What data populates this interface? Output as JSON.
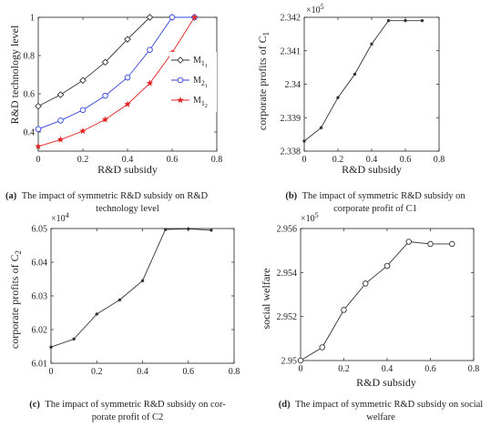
{
  "chart_data": [
    {
      "id": "a",
      "type": "line",
      "caption_letter": "(a)",
      "caption_lines": [
        "The impact of symmetric R&D subsidy on R&D",
        "technology level"
      ],
      "xlabel": "R&D subsidy",
      "ylabel": "R&D technology level",
      "xlim": [
        0,
        0.8
      ],
      "ylim": [
        0.3,
        1.0
      ],
      "xticks": [
        "0",
        "0.2",
        "0.4",
        "0.6",
        "0.8"
      ],
      "yticks": [
        "0.4",
        "0.6",
        "0.8",
        "1"
      ],
      "legend": "top-right",
      "series": [
        {
          "name": "M1_1",
          "legend_main": "M",
          "legend_sub": "1",
          "legend_subsub": "1",
          "color": "#333333",
          "marker": "diamond",
          "x": [
            0,
            0.1,
            0.2,
            0.3,
            0.4,
            0.5,
            0.6,
            0.7
          ],
          "values": [
            0.535,
            0.595,
            0.67,
            0.765,
            0.885,
            1.0,
            1.0,
            1.0
          ]
        },
        {
          "name": "M2_1",
          "legend_main": "M",
          "legend_sub": "2",
          "legend_subsub": "1",
          "color": "#3344dd",
          "marker": "circle",
          "x": [
            0,
            0.1,
            0.2,
            0.3,
            0.4,
            0.5,
            0.6,
            0.7
          ],
          "values": [
            0.415,
            0.46,
            0.515,
            0.59,
            0.685,
            0.83,
            1.0,
            1.0
          ]
        },
        {
          "name": "M1_2",
          "legend_main": "M",
          "legend_sub": "1",
          "legend_subsub": "2",
          "color": "#e02020",
          "marker": "star",
          "x": [
            0,
            0.1,
            0.2,
            0.3,
            0.4,
            0.5,
            0.6,
            0.7
          ],
          "values": [
            0.325,
            0.36,
            0.405,
            0.465,
            0.545,
            0.655,
            0.815,
            1.0
          ]
        }
      ]
    },
    {
      "id": "b",
      "type": "line",
      "caption_letter": "(b)",
      "caption_lines": [
        "The impact of symmetric R&D subsidy on",
        "corporate profit of C1"
      ],
      "xlabel": "R&D subsidy",
      "ylabel_main": "corporate profits of C",
      "ylabel_sub": "1",
      "exponent_base": "×10",
      "exponent_power": "5",
      "xlim": [
        0,
        0.8
      ],
      "ylim": [
        2.338,
        2.342
      ],
      "xticks": [
        "0",
        "0.2",
        "0.4",
        "0.6",
        "0.8"
      ],
      "yticks": [
        "2.338",
        "2.339",
        "2.34",
        "2.341",
        "2.342"
      ],
      "series": [
        {
          "color": "#333333",
          "marker": "dot",
          "x": [
            0,
            0.1,
            0.2,
            0.3,
            0.4,
            0.5,
            0.6,
            0.7
          ],
          "values": [
            2.3383,
            2.3387,
            2.3396,
            2.3403,
            2.3412,
            2.3419,
            2.3419,
            2.3419
          ]
        }
      ]
    },
    {
      "id": "c",
      "type": "line",
      "caption_letter": "(c)",
      "caption_lines": [
        "The impact of symmetric R&D subsidy on cor-",
        "porate profit of C2"
      ],
      "xlabel": "",
      "ylabel_main": "corporate profits of C",
      "ylabel_sub": "2",
      "exponent_base": "×10",
      "exponent_power": "4",
      "xlim": [
        0,
        0.8
      ],
      "ylim": [
        6.01,
        6.05
      ],
      "xticks": [
        "0",
        "0.2",
        "0.4",
        "0.6",
        "0.8"
      ],
      "yticks": [
        "6.01",
        "6.02",
        "6.03",
        "6.04",
        "6.05"
      ],
      "series": [
        {
          "color": "#333333",
          "marker": "dot",
          "x": [
            0,
            0.1,
            0.2,
            0.3,
            0.4,
            0.5,
            0.6,
            0.7
          ],
          "values": [
            6.0148,
            6.0172,
            6.0246,
            6.0288,
            6.0345,
            6.0497,
            6.0499,
            6.0495
          ]
        }
      ]
    },
    {
      "id": "d",
      "type": "line",
      "caption_letter": "(d)",
      "caption_lines": [
        "The impact of symmetric R&D subsidy on social",
        "welfare"
      ],
      "xlabel": "R&D subsidy",
      "ylabel": "social welfare",
      "exponent_base": "×10",
      "exponent_power": "5",
      "xlim": [
        0,
        0.8
      ],
      "ylim": [
        2.95,
        2.956
      ],
      "xticks": [
        "0",
        "0.2",
        "0.4",
        "0.6",
        "0.8"
      ],
      "yticks": [
        "2.95",
        "2.952",
        "2.954",
        "2.956"
      ],
      "series": [
        {
          "color": "#333333",
          "marker": "circle",
          "x": [
            0,
            0.1,
            0.2,
            0.3,
            0.4,
            0.5,
            0.6,
            0.7
          ],
          "values": [
            2.95,
            2.9506,
            2.9523,
            2.9535,
            2.9543,
            2.9554,
            2.9553,
            2.9553
          ]
        }
      ]
    }
  ]
}
